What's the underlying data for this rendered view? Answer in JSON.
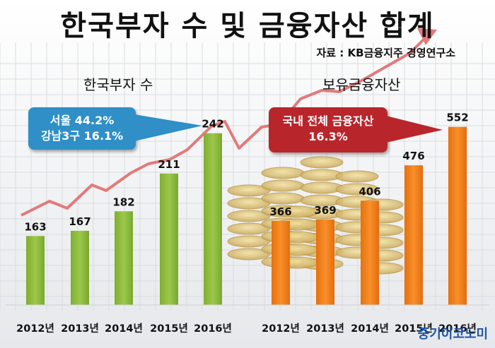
{
  "title": "한국부자 수 및 금융자산 합계",
  "source": "자료 : KB금융지주 경영연구소",
  "colors": {
    "green_bar": "#8dbb3c",
    "orange_bar": "#f07f1a",
    "arrow": "#e27a7a",
    "blue_callout": "#2f8fc6",
    "red_callout": "#b8262b"
  },
  "left_callout": {
    "line1": "서울 44.2%",
    "line2": "강남3구 16.1%"
  },
  "right_callout": {
    "line1": "국내 전체 금융자산",
    "line2": "16.3%"
  },
  "brand": "중기이코노미",
  "chart_data": [
    {
      "type": "bar",
      "subtitle": "한국부자 수",
      "categories": [
        "2012년",
        "2013년",
        "2014년",
        "2015년",
        "2016년"
      ],
      "values": [
        163,
        167,
        182,
        211,
        242
      ],
      "ylim": [
        110,
        250
      ],
      "color": "#8dbb3c"
    },
    {
      "type": "bar",
      "subtitle": "보유금융자산",
      "categories": [
        "2012년",
        "2013년",
        "2014년",
        "2015년",
        "2016년"
      ],
      "values": [
        366,
        369,
        406,
        476,
        552
      ],
      "ylim": [
        200,
        560
      ],
      "color": "#f07f1a"
    }
  ]
}
